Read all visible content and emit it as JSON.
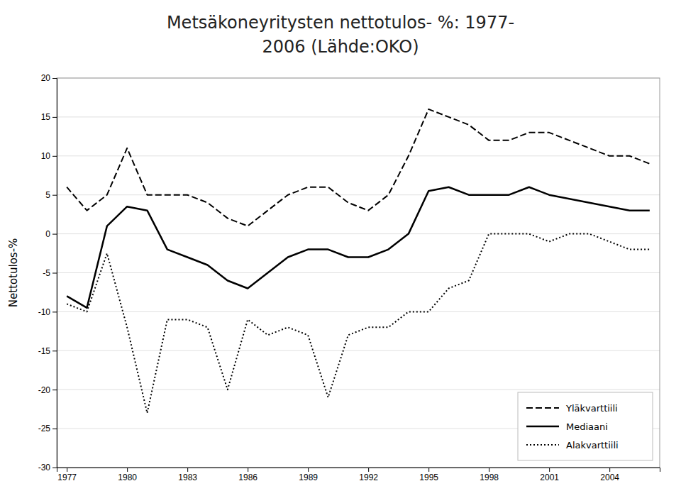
{
  "chart_data": {
    "type": "line",
    "title": "Metsäkoneyritysten nettotulos- %: 1977-",
    "subtitle": "2006 (Lähde:OKO)",
    "y_label": "Nettotulos-%",
    "x": [
      1977,
      1978,
      1979,
      1980,
      1981,
      1982,
      1983,
      1984,
      1985,
      1986,
      1987,
      1988,
      1989,
      1990,
      1991,
      1992,
      1993,
      1994,
      1995,
      1996,
      1997,
      1998,
      1999,
      2000,
      2001,
      2002,
      2003,
      2004,
      2005,
      2006
    ],
    "series": [
      {
        "name": "Yläkvarttiili",
        "color": "#000000",
        "line_style": "dashed",
        "values": [
          6,
          3,
          5,
          11,
          5,
          5,
          5,
          4,
          2,
          1,
          3,
          5,
          6,
          6,
          4,
          3,
          5,
          10,
          16,
          15,
          14,
          12,
          12,
          13,
          13,
          12,
          11,
          10,
          10,
          9
        ]
      },
      {
        "name": "Mediaani",
        "color": "#000000",
        "line_style": "solid",
        "values": [
          -8,
          -9.5,
          1,
          3.5,
          3,
          -2,
          -3,
          -4,
          -6,
          -7,
          -5,
          -3,
          -2,
          -2,
          -3,
          -3,
          -2,
          0,
          5.5,
          6,
          5,
          5,
          5,
          6,
          5,
          4.5,
          4,
          3.5,
          3,
          3
        ]
      },
      {
        "name": "Alakvarttiili",
        "color": "#000000",
        "line_style": "dotted",
        "values": [
          -9,
          -10,
          -2.5,
          -12,
          -23,
          -11,
          -11,
          -12,
          -20,
          -11,
          -13,
          -12,
          -13,
          -21,
          -13,
          -12,
          -12,
          -10,
          -10,
          -7,
          -6,
          0,
          0,
          0,
          -1,
          0,
          0,
          -1,
          -2,
          -2
        ]
      }
    ],
    "xlim": [
      1976.5,
      2006.5
    ],
    "xticks": [
      1977,
      1980,
      1983,
      1986,
      1989,
      1992,
      1995,
      1998,
      2001,
      2004
    ],
    "ylim": [
      -30,
      20
    ],
    "yticks": [
      -30,
      -25,
      -20,
      -15,
      -10,
      -5,
      0,
      5,
      10,
      15,
      20
    ],
    "grid": "y",
    "legend": "lower right"
  }
}
